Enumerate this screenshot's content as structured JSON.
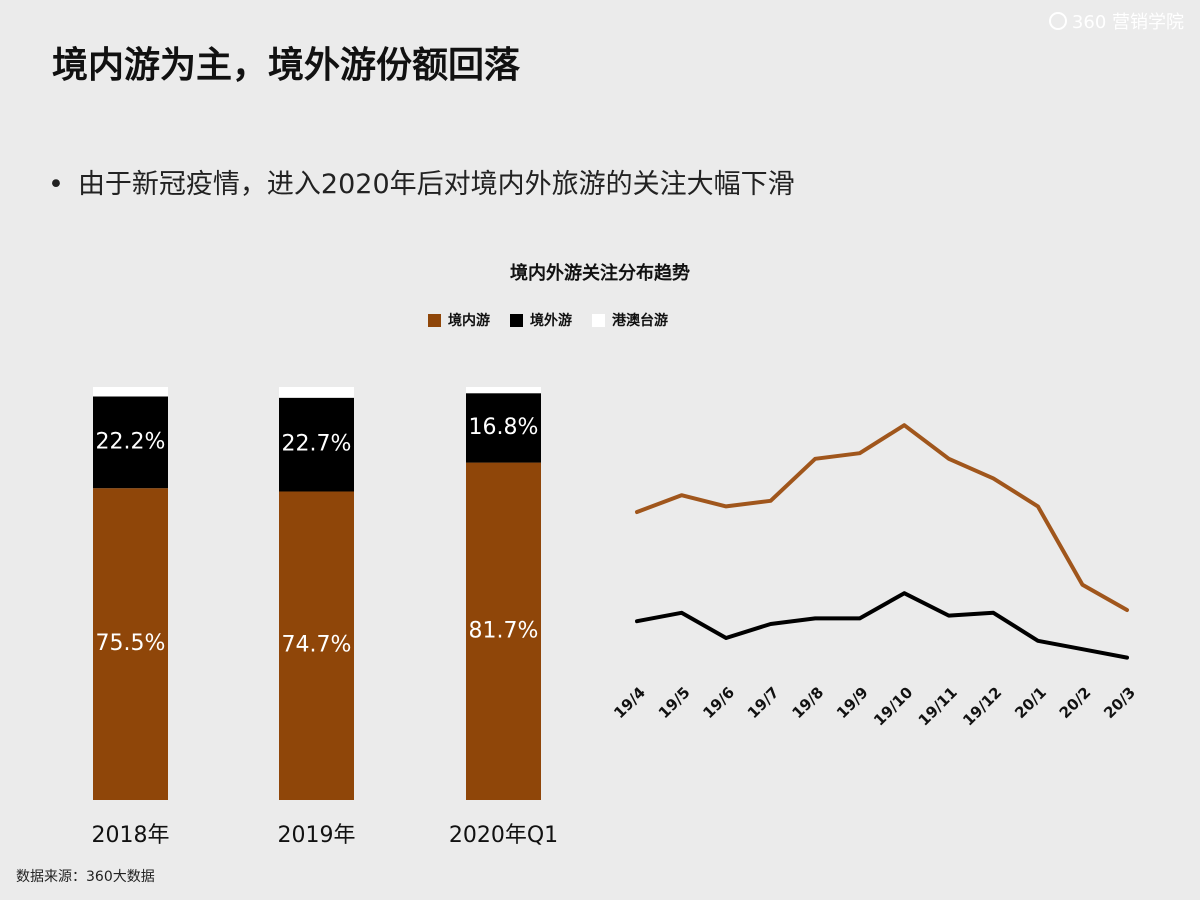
{
  "header": {
    "title": "境内游为主，境外游份额回落",
    "bullet": "由于新冠疫情，进入2020年后对境内外旅游的关注大幅下滑",
    "logo": "360 营销学院"
  },
  "footer": {
    "source": "数据来源：360大数据"
  },
  "chart_data": [
    {
      "type": "bar",
      "stacked": true,
      "title": "境内外游关注分布趋势",
      "categories": [
        "2018年",
        "2019年",
        "2020年Q1"
      ],
      "ylim": [
        0,
        100
      ],
      "series": [
        {
          "name": "境内游",
          "color": "#8f4609",
          "values": [
            75.5,
            74.7,
            81.7
          ],
          "value_labels": [
            "75.5%",
            "74.7%",
            "81.7%"
          ]
        },
        {
          "name": "境外游",
          "color": "#000000",
          "values": [
            22.2,
            22.7,
            16.8
          ],
          "value_labels": [
            "22.2%",
            "22.7%",
            "16.8%"
          ]
        },
        {
          "name": "港澳台游",
          "color": "#ffffff",
          "values": [
            2.3,
            2.6,
            1.5
          ]
        }
      ]
    },
    {
      "type": "line",
      "categories": [
        "19/4",
        "19/5",
        "19/6",
        "19/7",
        "19/8",
        "19/9",
        "19/10",
        "19/11",
        "19/12",
        "20/1",
        "20/2",
        "20/3"
      ],
      "ylim": [
        0,
        100
      ],
      "series": [
        {
          "color": "#a0561c",
          "values": [
            60,
            66,
            62,
            64,
            79,
            81,
            91,
            79,
            72,
            62,
            34,
            25
          ]
        },
        {
          "color": "#000000",
          "values": [
            21,
            24,
            15,
            20,
            22,
            22,
            31,
            23,
            24,
            14,
            11,
            8
          ]
        }
      ]
    }
  ]
}
